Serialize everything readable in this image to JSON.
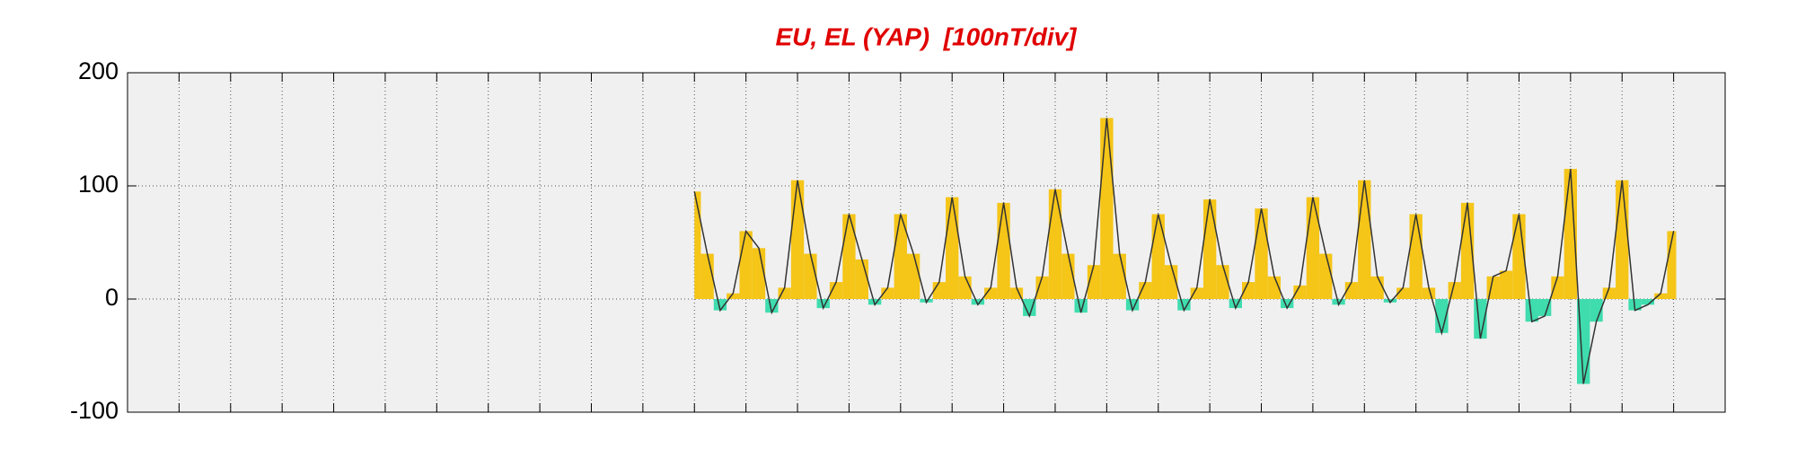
{
  "chart_data": {
    "type": "area-bar",
    "title": "EU, EL (YAP)  [100nT/div]",
    "x": [
      11,
      11.25,
      11.5,
      11.75,
      12,
      12.25,
      12.5,
      12.75,
      13,
      13.25,
      13.5,
      13.75,
      14,
      14.25,
      14.5,
      14.75,
      15,
      15.25,
      15.5,
      15.75,
      16,
      16.25,
      16.5,
      16.75,
      17,
      17.25,
      17.5,
      17.75,
      18,
      18.25,
      18.5,
      18.75,
      19,
      19.25,
      19.5,
      19.75,
      20,
      20.25,
      20.5,
      20.75,
      21,
      21.25,
      21.5,
      21.75,
      22,
      22.25,
      22.5,
      22.75,
      23,
      23.25,
      23.5,
      23.75,
      24,
      24.25,
      24.5,
      24.75,
      25,
      25.25,
      25.5,
      25.75,
      26,
      26.25,
      26.5,
      26.75,
      27,
      27.25,
      27.5,
      27.75,
      28,
      28.25,
      28.5,
      28.75,
      29,
      29.25,
      29.5,
      29.75,
      30
    ],
    "values": [
      95,
      40,
      -10,
      5,
      60,
      45,
      -12,
      10,
      105,
      40,
      -8,
      15,
      75,
      35,
      -5,
      10,
      75,
      40,
      -3,
      15,
      90,
      20,
      -5,
      10,
      85,
      10,
      -15,
      20,
      97,
      40,
      -12,
      30,
      160,
      40,
      -10,
      15,
      75,
      30,
      -10,
      10,
      88,
      30,
      -8,
      15,
      80,
      20,
      -8,
      12,
      90,
      40,
      -5,
      15,
      105,
      20,
      -3,
      10,
      75,
      10,
      -30,
      15,
      85,
      -35,
      20,
      25,
      75,
      -20,
      -15,
      20,
      115,
      -75,
      -20,
      10,
      105,
      -10,
      -5,
      5,
      60
    ],
    "positive_color": "#f5c518",
    "negative_color": "#3fdcae",
    "line_color": "#333333",
    "xlim": [
      0,
      31
    ],
    "xticks": [
      0,
      1,
      2,
      3,
      4,
      5,
      6,
      7,
      8,
      9,
      10,
      11,
      12,
      13,
      14,
      15,
      16,
      17,
      18,
      19,
      20,
      21,
      22,
      23,
      24,
      25,
      26,
      27,
      28,
      29,
      30,
      31
    ],
    "ylim": [
      -100,
      200
    ],
    "yticks": [
      -100,
      0,
      100,
      200
    ],
    "grid": true
  }
}
